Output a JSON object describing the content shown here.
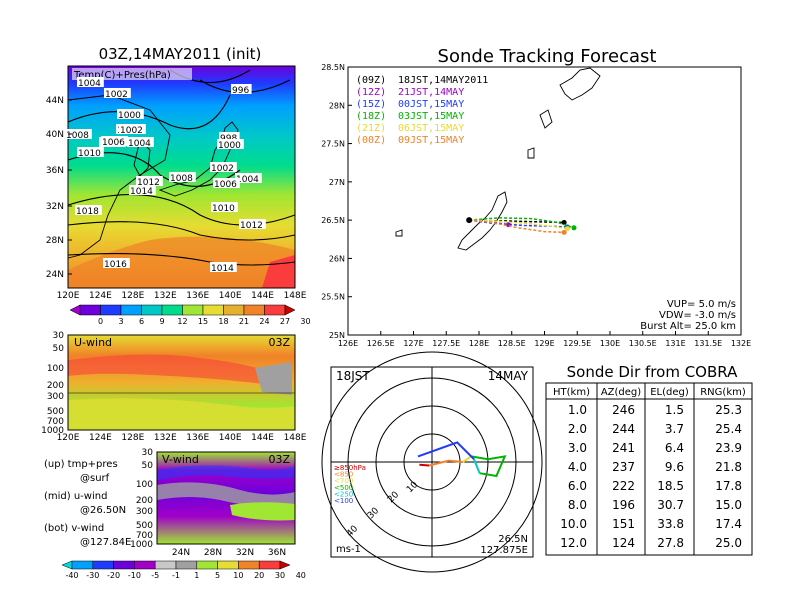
{
  "left_map": {
    "title": "03Z,14MAY2011 (init)",
    "subtitle": "Temp(C)+Pres(hPa)",
    "lat_labels": [
      "44N",
      "40N",
      "36N",
      "32N",
      "28N",
      "24N"
    ],
    "lon_labels": [
      "120E",
      "124E",
      "128E",
      "132E",
      "136E",
      "140E",
      "144E",
      "148E"
    ],
    "pressure_labels": [
      "1004",
      "1002",
      "1002",
      "996",
      "1000",
      "1002",
      "1008",
      "1000",
      "998",
      "1000",
      "1006",
      "1004",
      "1010",
      "1002",
      "1012",
      "1004",
      "1008",
      "1014",
      "1006",
      "1018",
      "1010",
      "1012",
      "1016",
      "1014"
    ],
    "colorbar_labels": [
      "0",
      "3",
      "6",
      "9",
      "12",
      "15",
      "18",
      "21",
      "24",
      "27",
      "30"
    ],
    "colorbar_colors": [
      "#a000c8",
      "#6e00dc",
      "#1e3cff",
      "#00a0ff",
      "#00c8c8",
      "#00dc8c",
      "#a0e632",
      "#e6dc32",
      "#e6af2d",
      "#f08228",
      "#fa3c3c",
      "#c80000"
    ]
  },
  "u_panel": {
    "label": "U-wind",
    "time": "03Z",
    "pressure_labels": [
      "30",
      "50",
      "100",
      "200",
      "300",
      "500",
      "700",
      "1000"
    ],
    "lon_labels": [
      "120E",
      "124E",
      "128E",
      "132E",
      "136E",
      "140E",
      "144E",
      "148E"
    ]
  },
  "v_panel": {
    "label": "V-wind",
    "time": "03Z",
    "pressure_labels": [
      "30",
      "50",
      "100",
      "200",
      "300",
      "500",
      "700",
      "1000"
    ],
    "lat_labels": [
      "24N",
      "28N",
      "32N",
      "36N"
    ],
    "colorbar_labels": [
      "-40",
      "-30",
      "-20",
      "-10",
      "-5",
      "-1",
      "1",
      "5",
      "10",
      "20",
      "30",
      "40"
    ],
    "colorbar_colors": [
      "#00dcdc",
      "#00a0ff",
      "#1e3cff",
      "#6e00dc",
      "#a000c8",
      "#c8c8c8",
      "#a0a0a0",
      "#a0e632",
      "#e6dc32",
      "#f08228",
      "#fa3c3c",
      "#c80000"
    ]
  },
  "legend_text": {
    "line1a": "(up) tmp+pres",
    "line1b": "@surf",
    "line2a": "(mid) u-wind",
    "line2b": "@26.50N",
    "line3a": "(bot) v-wind",
    "line3b": "@127.84E"
  },
  "tracking": {
    "title": "Sonde Tracking Forecast",
    "legend": [
      {
        "code": "(09Z)",
        "label": "18JST,14MAY2011",
        "color": "#000000"
      },
      {
        "code": "(12Z)",
        "label": "21JST,14MAY",
        "color": "#a000c8"
      },
      {
        "code": "(15Z)",
        "label": "00JST,15MAY",
        "color": "#1e3cff"
      },
      {
        "code": "(18Z)",
        "label": "03JST,15MAY",
        "color": "#00b400"
      },
      {
        "code": "(21Z)",
        "label": "06JST,15MAY",
        "color": "#e6dc32"
      },
      {
        "code": "(00Z)",
        "label": "09JST,15MAY",
        "color": "#f08228"
      }
    ],
    "lat_labels": [
      "28.5N",
      "28N",
      "27.5N",
      "27N",
      "26.5N",
      "26N",
      "25.5N",
      "25N"
    ],
    "lon_labels": [
      "126E",
      "126.5E",
      "127E",
      "127.5E",
      "128E",
      "128.5E",
      "129E",
      "129.5E",
      "130E",
      "130.5E",
      "131E",
      "131.5E",
      "132E"
    ],
    "params": [
      "VUP= 5.0 m/s",
      "VDW= -3.0 m/s",
      "Burst Alt= 25.0 km"
    ]
  },
  "chart_data": [
    {
      "type": "line",
      "title": "Sonde Tracking Forecast",
      "xlabel": "",
      "ylabel": "",
      "xlim": [
        126,
        132
      ],
      "ylim": [
        25,
        28.5
      ],
      "series": [
        {
          "name": "(09Z) 18JST,14MAY2011",
          "color": "#000000",
          "x": [
            127.85,
            128.0,
            128.4,
            128.8,
            129.3
          ],
          "y": [
            26.5,
            26.49,
            26.49,
            26.48,
            26.47
          ]
        },
        {
          "name": "(12Z) 21JST,14MAY",
          "color": "#a000c8",
          "x": [
            127.85,
            128.0,
            128.3,
            128.45
          ],
          "y": [
            26.5,
            26.49,
            26.46,
            26.44
          ]
        },
        {
          "name": "(15Z) 00JST,15MAY",
          "color": "#1e3cff",
          "x": [
            127.85,
            128.2,
            128.7,
            129.1,
            129.35
          ],
          "y": [
            26.5,
            26.46,
            26.43,
            26.42,
            26.41
          ]
        },
        {
          "name": "(18Z) 03JST,15MAY",
          "color": "#00b400",
          "x": [
            127.85,
            128.3,
            128.8,
            129.2,
            129.45
          ],
          "y": [
            26.5,
            26.53,
            26.52,
            26.47,
            26.4
          ]
        },
        {
          "name": "(21Z) 06JST,15MAY",
          "color": "#e6dc32",
          "x": [
            127.85,
            128.2,
            128.7,
            129.1,
            129.35
          ],
          "y": [
            26.5,
            26.49,
            26.46,
            26.42,
            26.39
          ]
        },
        {
          "name": "(00Z) 09JST,15MAY",
          "color": "#f08228",
          "x": [
            127.85,
            128.2,
            128.6,
            129.0,
            129.3
          ],
          "y": [
            26.5,
            26.47,
            26.4,
            26.35,
            26.34
          ]
        }
      ]
    },
    {
      "type": "table",
      "title": "Sonde Dir from COBRA",
      "columns": [
        "HT(km)",
        "AZ(deg)",
        "EL(deg)",
        "RNG(km)"
      ],
      "rows": [
        [
          "1.0",
          "246",
          "1.5",
          "25.3"
        ],
        [
          "2.0",
          "244",
          "3.7",
          "25.4"
        ],
        [
          "3.0",
          "241",
          "6.4",
          "23.9"
        ],
        [
          "4.0",
          "237",
          "9.6",
          "21.8"
        ],
        [
          "6.0",
          "222",
          "18.5",
          "17.8"
        ],
        [
          "8.0",
          "196",
          "30.7",
          "15.0"
        ],
        [
          "10.0",
          "151",
          "33.8",
          "17.4"
        ],
        [
          "12.0",
          "124",
          "27.8",
          "25.0"
        ]
      ]
    },
    {
      "type": "line",
      "title": "",
      "series": [
        {
          "name": "hodograph",
          "color": "#1e3cff",
          "u": [
            -0.3,
            0.6,
            1.8,
            3.2,
            4.2
          ],
          "v": [
            0.9,
            1.2,
            1.4,
            1.0,
            0.2
          ]
        }
      ]
    }
  ],
  "hodograph": {
    "time": "18JST",
    "date": "14MAY",
    "legend": [
      {
        "label": "≥850hPa",
        "color": "#d20000"
      },
      {
        "label": "<850",
        "color": "#f08228"
      },
      {
        "label": "<700",
        "color": "#e6dc32"
      },
      {
        "label": "<500",
        "color": "#00b400"
      },
      {
        "label": "<250",
        "color": "#00c8c8"
      },
      {
        "label": "<100",
        "color": "#1e3cff"
      }
    ],
    "ring_labels": [
      "10",
      "20",
      "30",
      "40"
    ],
    "unit": "ms-1",
    "lat": "26.5N",
    "lon": "127.875E"
  },
  "table_header": "Sonde Dir from COBRA"
}
